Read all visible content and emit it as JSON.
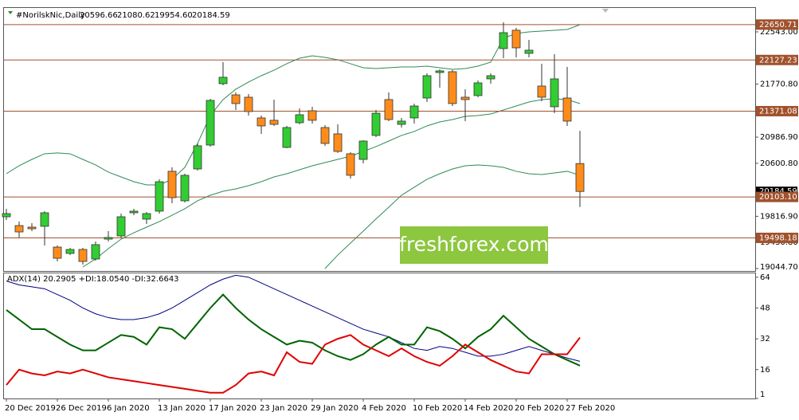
{
  "chart_data": [
    {
      "type": "candlestick",
      "title": "#NorilskNic,Daily",
      "ohlc_labels": [
        "20596.66",
        "21080.62",
        "19954.60",
        "20184.59"
      ],
      "categories": [
        "20 Dec 2019",
        null,
        null,
        null,
        "26 Dec 2019",
        null,
        null,
        null,
        "6 Jan 2020",
        null,
        null,
        null,
        "13 Jan 2020",
        null,
        null,
        null,
        "17 Jan 2020",
        null,
        null,
        null,
        "23 Jan 2020",
        null,
        null,
        null,
        "29 Jan 2020",
        null,
        null,
        null,
        "4 Feb 2020",
        null,
        null,
        null,
        "10 Feb 2020",
        null,
        null,
        null,
        "14 Feb 2020",
        null,
        null,
        null,
        "20 Feb 2020",
        null,
        null,
        null,
        "27 Feb 2020",
        null
      ],
      "open": [
        19810,
        19680,
        19657,
        19669,
        19362,
        19268,
        19327,
        19186,
        19480,
        19527,
        19869,
        19775,
        19893,
        20482,
        20046,
        20517,
        20870,
        21777,
        21612,
        21577,
        21271,
        21236,
        20835,
        21200,
        21377,
        21129,
        21035,
        20741,
        20658,
        21012,
        21542,
        21176,
        21271,
        21565,
        21942,
        21954,
        21577,
        21601,
        21848,
        22296,
        22567,
        22225,
        21742,
        21436,
        21565,
        20596.66
      ],
      "high": [
        19928,
        19739,
        19716,
        19893,
        19386,
        19350,
        19350,
        19445,
        19598,
        19857,
        19928,
        19881,
        20364,
        20541,
        20446,
        20894,
        21553,
        22095,
        21648,
        21624,
        21306,
        21542,
        21153,
        21412,
        21436,
        21164,
        21176,
        20764,
        20941,
        21389,
        21648,
        21271,
        21483,
        21930,
        21989,
        21978,
        21695,
        21824,
        21930,
        22684,
        22602,
        22425,
        22072,
        22213,
        22024,
        21080.62
      ],
      "low": [
        19763,
        19504,
        19598,
        19386,
        19150,
        19245,
        19103,
        19162,
        19445,
        19504,
        19834,
        19704,
        19857,
        20010,
        20022,
        20493,
        20847,
        21754,
        21389,
        21306,
        21035,
        21153,
        20823,
        21176,
        21188,
        20859,
        20753,
        20375,
        20599,
        20988,
        21224,
        21129,
        21188,
        21506,
        21718,
        21447,
        21224,
        21577,
        21777,
        22154,
        22166,
        22166,
        21518,
        21341,
        21153,
        19954.6
      ],
      "close": [
        19857,
        19586,
        19633,
        19869,
        19197,
        19327,
        19150,
        19398,
        19504,
        19810,
        19893,
        19857,
        20328,
        20093,
        20423,
        20859,
        21530,
        21872,
        21483,
        21365,
        21153,
        21176,
        21129,
        21318,
        21236,
        20894,
        20776,
        20423,
        20929,
        21341,
        21247,
        21224,
        21447,
        21895,
        21966,
        21483,
        21542,
        21789,
        21895,
        22531,
        22307,
        22272,
        21577,
        21848,
        21224,
        20184.59
      ],
      "up_color": "#32cd32",
      "down_color": "#ff8c1a",
      "bands": [
        {
          "color": "#2e8b57",
          "values": [
            20446,
            20564,
            20658,
            20741,
            20753,
            20741,
            20658,
            20576,
            20470,
            20399,
            20328,
            20281,
            20281,
            20364,
            20540,
            20894,
            21306,
            21542,
            21695,
            21801,
            21895,
            21977,
            22072,
            22154,
            22189,
            22166,
            22131,
            22072,
            22013,
            22001,
            22013,
            22024,
            22024,
            22036,
            22013,
            21989,
            22001,
            22036,
            22095,
            22449,
            22519,
            22543,
            22555,
            22566,
            22578,
            22649
          ]
        },
        {
          "color": "#2e8b57",
          "values": [
            null,
            null,
            null,
            null,
            null,
            null,
            19068,
            19186,
            19339,
            19480,
            19574,
            19657,
            19739,
            19833,
            19928,
            20046,
            20128,
            20187,
            20222,
            20269,
            20328,
            20399,
            20446,
            20505,
            20564,
            20611,
            20658,
            20705,
            20776,
            20847,
            20929,
            21012,
            21071,
            21153,
            21212,
            21247,
            21294,
            21306,
            21330,
            21388,
            21447,
            21506,
            21542,
            21554,
            21542,
            21483
          ]
        },
        {
          "color": "#2e8b57",
          "values": [
            null,
            null,
            null,
            null,
            null,
            null,
            null,
            null,
            null,
            null,
            null,
            null,
            null,
            null,
            null,
            null,
            null,
            null,
            null,
            null,
            null,
            null,
            null,
            null,
            null,
            19044,
            19244,
            19421,
            19598,
            19777,
            19951,
            20128,
            20246,
            20364,
            20446,
            20517,
            20564,
            20576,
            20564,
            20540,
            20482,
            20446,
            20434,
            20458,
            20482,
            20423
          ]
        }
      ],
      "levels": {
        "color": "#a0522d",
        "values": [
          22650.71,
          22127.23,
          21371.08,
          20103.1,
          19498.18
        ],
        "value_labels": [
          "22650.71",
          "22127.23",
          "21371.08",
          "20103.10",
          "19498.18"
        ]
      },
      "ylim": [
        19009,
        22896
      ],
      "yticks": [
        {
          "value": 22543,
          "label": "22543.00"
        },
        {
          "value": 21770.8,
          "label": "21770.80"
        },
        {
          "value": 20986.9,
          "label": "20986.90"
        },
        {
          "value": 20600.8,
          "label": "20600.80"
        },
        {
          "value": 19816.9,
          "label": "19816.90"
        },
        {
          "value": 19430.8,
          "label": "19430.80"
        },
        {
          "value": 19044.7,
          "label": "19044.70"
        }
      ]
    },
    {
      "type": "line",
      "title": "ADX(14) 20.2905 +DI:18.0540 -DI:32.6643",
      "series": [
        {
          "color": "#000080",
          "values": [
            62,
            60,
            59,
            58,
            55,
            52,
            48,
            45,
            43,
            42,
            42,
            43,
            45,
            48,
            52,
            56,
            60,
            63,
            65,
            64,
            61,
            58,
            55,
            52,
            49,
            46,
            43,
            40,
            37,
            35,
            33,
            30,
            27,
            26,
            28,
            27,
            25,
            23,
            23,
            24,
            26,
            28,
            26,
            24,
            22,
            20.2905
          ]
        },
        {
          "color": "#006400",
          "values": [
            47,
            42,
            37,
            37,
            33,
            29,
            26,
            26,
            30,
            34,
            33,
            29,
            38,
            37,
            32,
            40,
            48,
            55,
            48,
            42,
            37,
            33,
            29,
            31,
            30,
            26,
            23,
            21,
            24,
            29,
            33,
            29,
            29,
            38,
            36,
            32,
            27,
            33,
            37,
            44,
            38,
            32,
            28,
            24,
            21,
            18.054
          ]
        },
        {
          "color": "#e00000",
          "values": [
            8,
            16,
            14,
            13,
            15,
            14,
            16,
            14,
            12,
            11,
            10,
            9,
            8,
            7,
            6,
            5,
            4,
            4,
            8,
            14,
            15,
            13,
            25,
            20,
            19,
            29,
            32,
            34,
            29,
            26,
            23,
            27,
            23,
            20,
            18,
            23,
            29,
            25,
            21,
            18,
            15,
            14,
            24,
            24,
            24,
            32.6643
          ]
        }
      ],
      "ylim": [
        1,
        66
      ],
      "yticks": [
        64,
        48,
        32,
        16,
        1
      ]
    }
  ],
  "watermark": "freshforex.com"
}
